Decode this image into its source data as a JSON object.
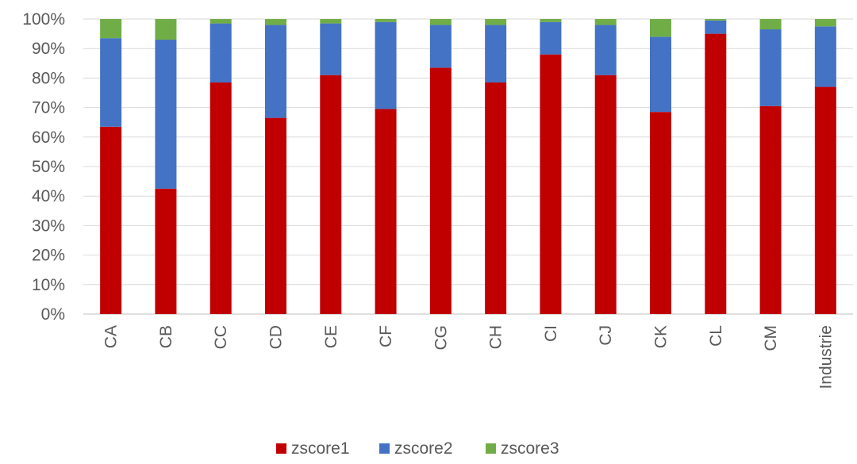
{
  "chart_data": {
    "type": "bar",
    "stacked": true,
    "normalized": true,
    "title": "",
    "xlabel": "",
    "ylabel": "",
    "ylim": [
      0,
      100
    ],
    "yticks": [
      "0%",
      "10%",
      "20%",
      "30%",
      "40%",
      "50%",
      "60%",
      "70%",
      "80%",
      "90%",
      "100%"
    ],
    "categories": [
      "CA",
      "CB",
      "CC",
      "CD",
      "CE",
      "CF",
      "CG",
      "CH",
      "CI",
      "CJ",
      "CK",
      "CL",
      "CM",
      "Industrie"
    ],
    "series": [
      {
        "name": "zscore1",
        "color": "#c00000",
        "values": [
          63.5,
          42.5,
          78.5,
          66.5,
          81,
          69.5,
          83.5,
          78.5,
          88,
          81,
          68.5,
          95,
          70.5,
          77
        ]
      },
      {
        "name": "zscore2",
        "color": "#4472c4",
        "values": [
          30,
          50.5,
          20,
          31.5,
          17.5,
          29.5,
          14.5,
          19.5,
          11,
          17,
          25.5,
          4.5,
          26,
          20.5
        ]
      },
      {
        "name": "zscore3",
        "color": "#70ad47",
        "values": [
          6.5,
          7,
          1.5,
          2,
          1.5,
          1,
          2,
          2,
          1,
          2,
          6,
          0.5,
          3.5,
          2.5
        ]
      }
    ],
    "legend": "bottom-center",
    "grid": true
  }
}
